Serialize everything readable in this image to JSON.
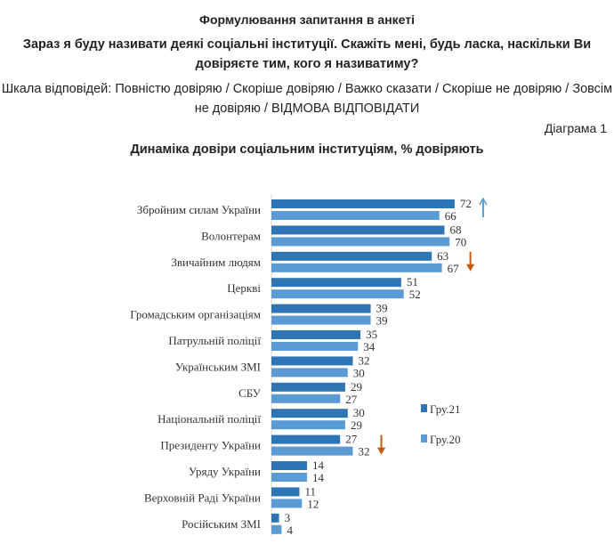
{
  "header": {
    "section_title": "Формулювання запитання в анкеті",
    "question": "Зараз я буду називати деякі соціальні інституції. Скажіть мені, будь ласка, наскільки Ви довіряєте тим, кого я називатиму?",
    "scale": "Шкала відповідей: Повністю довіряю / Скоріше довіряю / Важко сказати / Скоріше не довіряю / Зовсім не довіряю / ВІДМОВА ВІДПОВІДАТИ",
    "diagram_label": "Діаграма 1"
  },
  "chart_data": {
    "type": "bar",
    "orientation": "horizontal",
    "title": "Динаміка довіри соціальним інституціям, % довіряють",
    "categories": [
      "Збройним силам України",
      "Волонтерам",
      "Звичайним людям",
      "Церкві",
      "Громадським організаціям",
      "Патрульній поліції",
      "Українським ЗМІ",
      "СБУ",
      "Національній поліції",
      "Президенту України",
      "Уряду України",
      "Верховній Раді України",
      "Російським ЗМІ"
    ],
    "series": [
      {
        "name": "Гру.21",
        "color": "#2e75b6",
        "values": [
          72,
          68,
          63,
          51,
          39,
          35,
          32,
          29,
          30,
          27,
          14,
          11,
          3
        ]
      },
      {
        "name": "Гру.20",
        "color": "#5b9bd5",
        "values": [
          66,
          70,
          67,
          52,
          39,
          34,
          30,
          27,
          29,
          32,
          14,
          12,
          4
        ]
      }
    ],
    "annotations": [
      {
        "category": "Збройним силам України",
        "arrow": "up",
        "color": "#5b9bd5"
      },
      {
        "category": "Звичайним людям",
        "arrow": "down",
        "color": "#c55a11"
      },
      {
        "category": "Президенту України",
        "arrow": "down",
        "color": "#c55a11"
      }
    ],
    "legend": "right",
    "grid": false
  }
}
